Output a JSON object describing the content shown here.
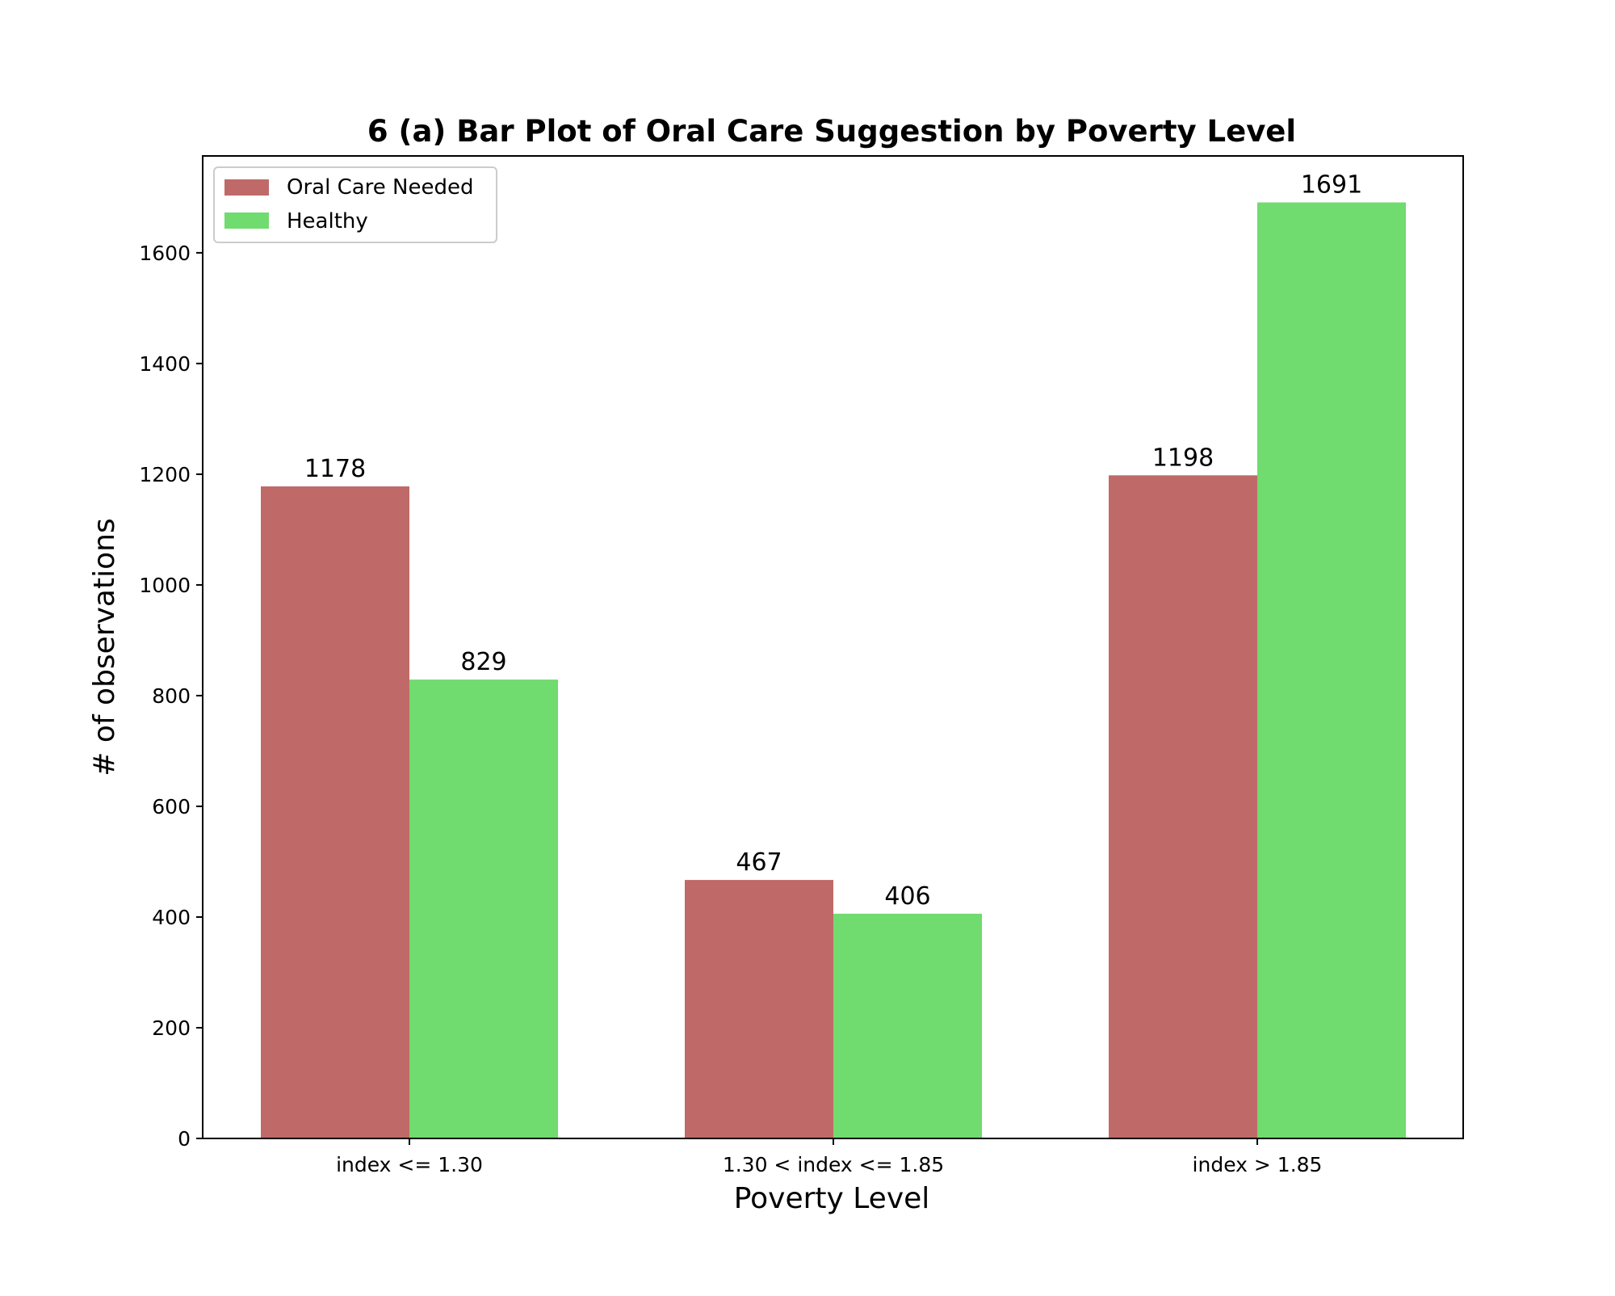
{
  "chart_data": {
    "type": "bar",
    "title": "6 (a) Bar Plot of Oral Care Suggestion by Poverty Level",
    "xlabel": "Poverty Level",
    "ylabel": "# of observations",
    "categories": [
      "index <= 1.30",
      "1.30 < index <= 1.85",
      "index > 1.85"
    ],
    "series": [
      {
        "name": "Oral Care Needed",
        "values": [
          1178,
          467,
          1198
        ],
        "color": "#bf6a68"
      },
      {
        "name": "Healthy",
        "values": [
          829,
          406,
          1691
        ],
        "color": "#70db6e"
      }
    ],
    "ylim": [
      0,
      1775
    ],
    "yticks": [
      0,
      200,
      400,
      600,
      800,
      1000,
      1200,
      1400,
      1600
    ],
    "grid": false,
    "legend_position": "top-left",
    "data_labels": true
  }
}
